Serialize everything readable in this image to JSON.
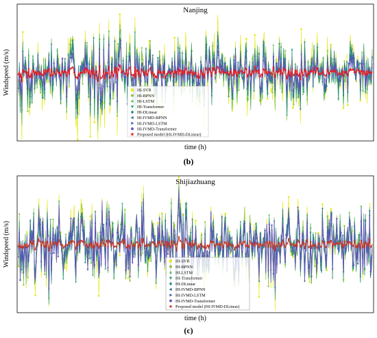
{
  "chart_data": [
    {
      "type": "line",
      "title": "Nanjing",
      "xlabel": "time (h)",
      "ylabel": "Windspeed (m/s)",
      "panel_label": "(b)",
      "grid": false,
      "legend_placement": "bottom-center",
      "ylim": [
        -1,
        1
      ],
      "n_points": 420,
      "seed": 7,
      "envelope": [
        0.55,
        0.8,
        0.55,
        0.6,
        0.55,
        0.5
      ],
      "down_bias": [
        [
          0.0,
          0.2,
          1.4
        ]
      ],
      "series": [
        {
          "name": "HI-SVR",
          "color": "#e8e81a",
          "marker": "square",
          "scale": 1.0
        },
        {
          "name": "HI-BPNN",
          "color": "#8dc63f",
          "marker": "circle",
          "scale": 0.8
        },
        {
          "name": "HI-LSTM",
          "color": "#5fb85a",
          "marker": "triangle-up",
          "scale": 0.78
        },
        {
          "name": "HI-Transformer",
          "color": "#2e9e6e",
          "marker": "triangle-down",
          "scale": 0.72
        },
        {
          "name": "HI-DLinear",
          "color": "#2a8d86",
          "marker": "diamond",
          "scale": 0.68
        },
        {
          "name": "HI-IVMD-BPNN",
          "color": "#2c6f8e",
          "marker": "triangle-left",
          "scale": 0.6
        },
        {
          "name": "HI-IVMD-LSTM",
          "color": "#3f5ca8",
          "marker": "triangle-right",
          "scale": 0.52
        },
        {
          "name": "HI-IVMD-Transformer",
          "color": "#6a4fc0",
          "marker": "hexagon",
          "scale": 0.45
        },
        {
          "name": "Proposed model (HI-IVMD-DLinear)",
          "color": "#e01b24",
          "marker": "star",
          "scale": 0.12
        }
      ]
    },
    {
      "type": "line",
      "title": "Shijiazhuang",
      "xlabel": "time (h)",
      "ylabel": "Windspeed (m/s)",
      "panel_label": "(c)",
      "grid": false,
      "legend_placement": "bottom-center",
      "ylim": [
        -1,
        1
      ],
      "n_points": 420,
      "seed": 19,
      "envelope": [
        0.7,
        0.65,
        0.7,
        0.65,
        0.7,
        0.65
      ],
      "down_bias": [],
      "series": [
        {
          "name": "HI-SVR",
          "color": "#e8e81a",
          "marker": "square",
          "scale": 0.95
        },
        {
          "name": "HI-BPNN",
          "color": "#8dc63f",
          "marker": "circle",
          "scale": 0.85
        },
        {
          "name": "HI-LSTM",
          "color": "#5fb85a",
          "marker": "triangle-up",
          "scale": 0.8
        },
        {
          "name": "HI-Transformer",
          "color": "#2e9e6e",
          "marker": "triangle-down",
          "scale": 0.78
        },
        {
          "name": "HI-DLinear",
          "color": "#2a8d86",
          "marker": "diamond",
          "scale": 0.74
        },
        {
          "name": "HI-IVMD-BPNN",
          "color": "#2c6f8e",
          "marker": "triangle-left",
          "scale": 0.7
        },
        {
          "name": "HI-IVMD-LSTM",
          "color": "#3f5ca8",
          "marker": "triangle-right",
          "scale": 0.7
        },
        {
          "name": "HI-IVMD-Transformer",
          "color": "#6a4fc0",
          "marker": "hexagon",
          "scale": 0.72
        },
        {
          "name": "Proposed model (HI-IVMD-DLinear)",
          "color": "#c0392b",
          "marker": "star",
          "scale": 0.1
        }
      ]
    }
  ]
}
